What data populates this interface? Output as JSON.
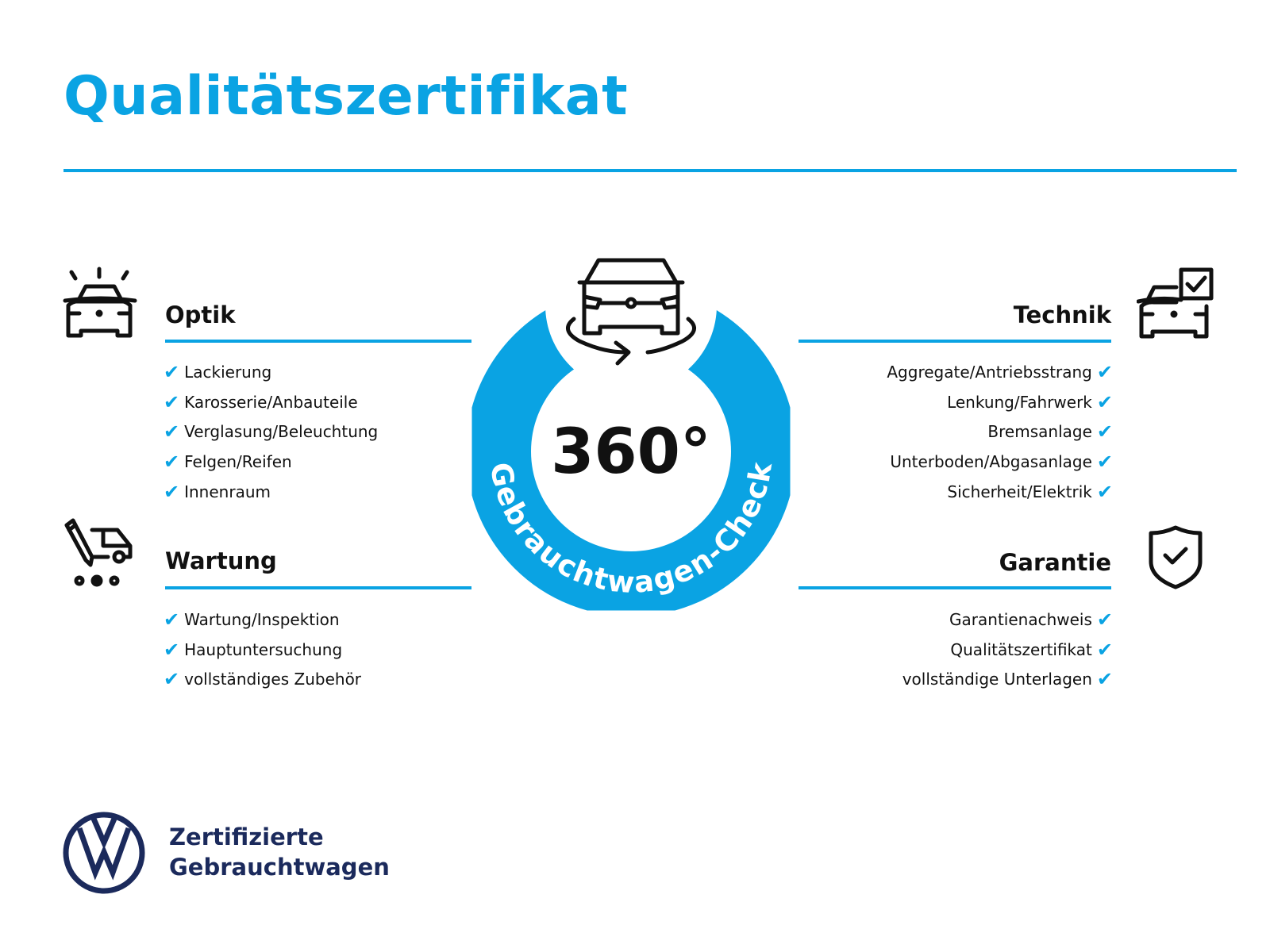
{
  "title": "Qualitätszertifikat",
  "center": {
    "number": "360°",
    "ring_text": "Gebrauchtwagen-Check"
  },
  "sections": {
    "optik": {
      "title": "Optik",
      "icon": "car-lights-icon",
      "items": [
        "Lackierung",
        "Karosserie/Anbauteile",
        "Verglasung/Beleuchtung",
        "Felgen/Reifen",
        "Innenraum"
      ]
    },
    "wartung": {
      "title": "Wartung",
      "icon": "van-service-icon",
      "items": [
        "Wartung/Inspektion",
        "Hauptuntersuchung",
        "vollständiges Zubehör"
      ]
    },
    "technik": {
      "title": "Technik",
      "icon": "car-checkbox-icon",
      "items": [
        "Aggregate/Antriebsstrang",
        "Lenkung/Fahrwerk",
        "Bremsanlage",
        "Unterboden/Abgasanlage",
        "Sicherheit/Elektrik"
      ]
    },
    "garantie": {
      "title": "Garantie",
      "icon": "shield-check-icon",
      "items": [
        "Garantienachweis",
        "Qualitätszertifikat",
        "vollständige Unterlagen"
      ]
    }
  },
  "logo": {
    "line1": "Zertifizierte",
    "line2": "Gebrauchtwagen",
    "text": "VW"
  },
  "colors": {
    "accent": "#0aa3e3",
    "navy": "#1b2a5c"
  }
}
